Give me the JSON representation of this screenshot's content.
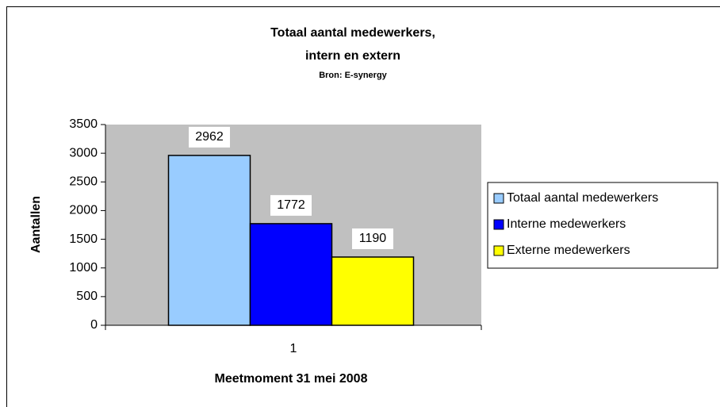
{
  "chart_data": {
    "type": "bar",
    "title": [
      "Totaal aantal medewerkers,",
      "intern en extern"
    ],
    "subtitle": "Bron: E-synergy",
    "xlabel": "Meetmoment 31 mei 2008",
    "ylabel": "Aantallen",
    "categories": [
      "1"
    ],
    "series": [
      {
        "name": "Totaal aantal medewerkers",
        "color": "#99ccff",
        "values": [
          2962
        ]
      },
      {
        "name": "Interne medewerkers",
        "color": "#0000ff",
        "values": [
          1772
        ]
      },
      {
        "name": "Externe medewerkers",
        "color": "#ffff00",
        "values": [
          1190
        ]
      }
    ],
    "ylim": [
      0,
      3500
    ],
    "yticks": [
      0,
      500,
      1000,
      1500,
      2000,
      2500,
      3000,
      3500
    ],
    "plot_background": "#c0c0c0",
    "legend": "right"
  }
}
